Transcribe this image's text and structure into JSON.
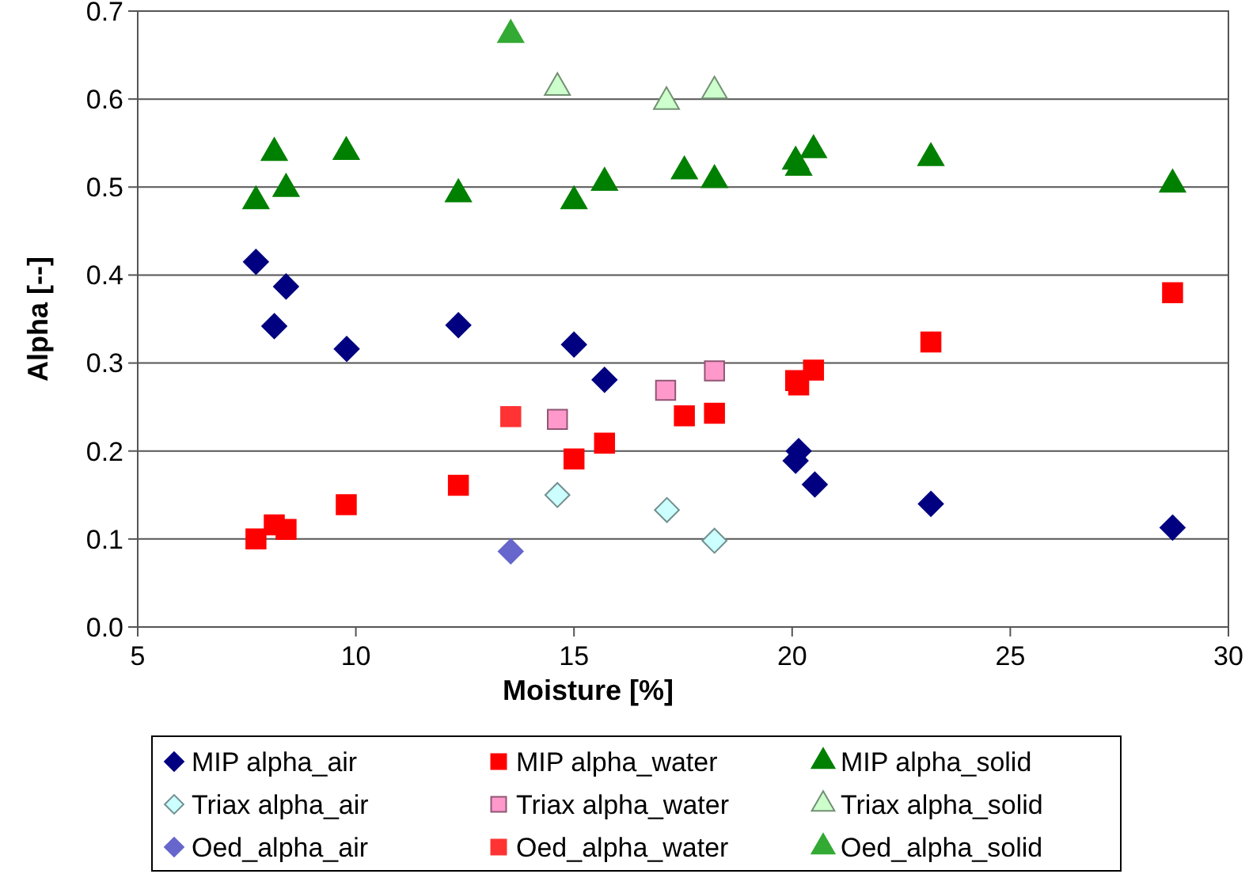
{
  "chart_data": {
    "type": "scatter",
    "xlabel": "Moisture [%]",
    "ylabel": "Alpha [--]",
    "xlim": [
      5,
      30
    ],
    "xticks": [
      5,
      10,
      15,
      20,
      25,
      30
    ],
    "ylim": [
      0,
      0.7
    ],
    "yticks": [
      {
        "value": 0,
        "label": "0.0"
      },
      0.1,
      0.2,
      0.3,
      0.4,
      0.5,
      0.6,
      0.7
    ],
    "grid": "y",
    "legend": "bottom",
    "series": [
      {
        "name": "MIP alpha_air",
        "color": "#000080",
        "marker": "diamond",
        "x": [
          7.71,
          8.13,
          8.4,
          9.79,
          12.35,
          15.0,
          15.7,
          20.08,
          20.15,
          20.52,
          23.18,
          28.72
        ],
        "values": [
          0.415,
          0.342,
          0.387,
          0.316,
          0.343,
          0.321,
          0.281,
          0.189,
          0.2,
          0.162,
          0.14,
          0.113
        ]
      },
      {
        "name": "MIP alpha_water",
        "color": "#ff0000",
        "marker": "square",
        "x": [
          7.71,
          8.13,
          8.4,
          9.78,
          12.35,
          15.0,
          15.7,
          17.53,
          18.22,
          20.08,
          20.15,
          20.49,
          23.18,
          28.72
        ],
        "values": [
          0.1,
          0.116,
          0.111,
          0.139,
          0.161,
          0.191,
          0.209,
          0.24,
          0.243,
          0.28,
          0.275,
          0.292,
          0.324,
          0.38
        ]
      },
      {
        "name": "MIP alpha_solid",
        "color": "#008000",
        "marker": "triangle",
        "x": [
          7.71,
          8.13,
          8.4,
          9.78,
          12.35,
          15.0,
          15.7,
          17.53,
          18.22,
          20.08,
          20.15,
          20.49,
          23.18,
          28.72
        ],
        "values": [
          0.484,
          0.539,
          0.498,
          0.54,
          0.492,
          0.484,
          0.505,
          0.518,
          0.508,
          0.529,
          0.522,
          0.542,
          0.533,
          0.503
        ]
      },
      {
        "name": "Triax alpha_air",
        "color": "#ccffff",
        "marker": "diamond",
        "x": [
          14.62,
          17.13,
          18.22
        ],
        "values": [
          0.15,
          0.133,
          0.098
        ]
      },
      {
        "name": "Triax alpha_water",
        "color": "#ff99cc",
        "marker": "square",
        "x": [
          14.62,
          17.1,
          18.22
        ],
        "values": [
          0.236,
          0.269,
          0.291
        ]
      },
      {
        "name": "Triax alpha_solid",
        "color": "#ccffcc",
        "marker": "triangle",
        "x": [
          14.62,
          17.12,
          18.22
        ],
        "values": [
          0.613,
          0.597,
          0.609
        ]
      },
      {
        "name": "Oed_alpha_air",
        "color": "#6666cc",
        "marker": "diamond",
        "x": [
          13.55
        ],
        "values": [
          0.086
        ]
      },
      {
        "name": "Oed_alpha_water",
        "color": "#ff3333",
        "marker": "square",
        "x": [
          13.55
        ],
        "values": [
          0.239
        ]
      },
      {
        "name": "Oed_alpha_solid",
        "color": "#33aa33",
        "marker": "triangle",
        "x": [
          13.55
        ],
        "values": [
          0.673
        ]
      }
    ]
  }
}
